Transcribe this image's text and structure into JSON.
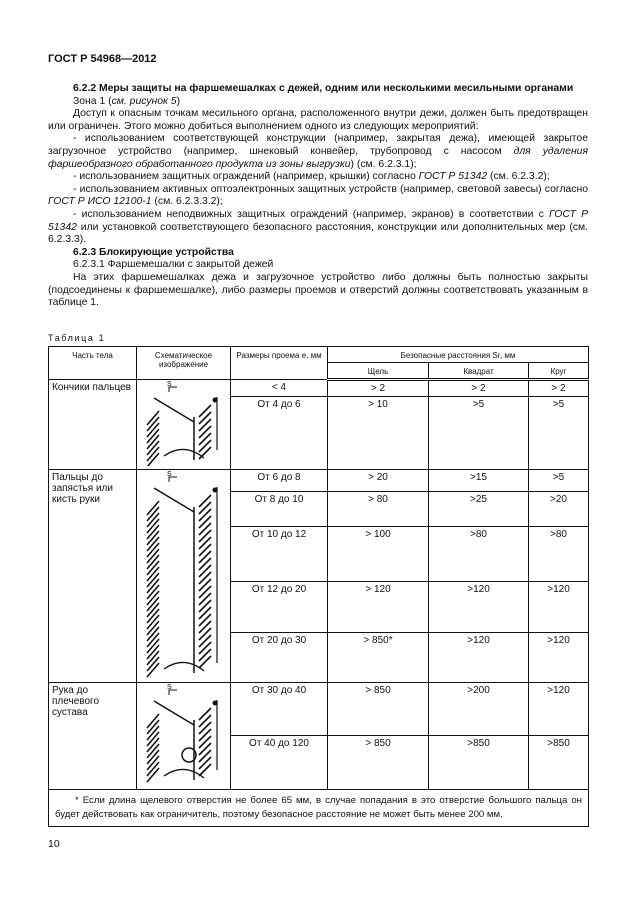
{
  "header": "ГОСТ Р 54968—2012",
  "section_622": {
    "title": "6.2.2 Меры  защиты  на фаршемешалках с дежей, одним или несколькими месильными органами",
    "zone": "Зона 1 (",
    "zone_ref": "см. рисунок 5",
    "zone_end": ")",
    "intro": "Доступ к опасным точкам месильного органа, расположенного внутри дежи, должен быть предотвращен или ограничен. Этого можно добиться выполнением одного из следующих мероприятий:",
    "item1_a": "- использованием соответствующей конструкции (например, закрытая дежа), имеющей закрытое загрузочное устройство (например, шнековый конвейер, трубопровод с насосом ",
    "item1_i": "для удаления фаршеобразного обработанного продукта из зоны выгрузки",
    "item1_b": ") (см. 6.2.3.1);",
    "item2_a": "- использованием защитных ограждений (например, крышки) согласно ",
    "item2_i": "ГОСТ Р 51342",
    "item2_b": " (см. 6.2.3.2);",
    "item3_a": "- использованием активных оптоэлектронных защитных устройств (например, световой завесы) согласно ",
    "item3_i": "ГОСТ Р ИСО 12100-1",
    "item3_b": " (см. 6.2.3.3.2);",
    "item4_a": "- использованием неподвижных защитных ограждений (например, экранов) в соответствии с ",
    "item4_i": "ГОСТ Р 51342",
    "item4_b": " или установкой соответствующего безопасного расстояния, конструкции или дополнительных мер (см. 6.2.3.3)."
  },
  "section_623": {
    "title": "6.2.3 Блокирующие устройства",
    "sub": "6.2.3.1 Фаршемешалки с закрытой дежей",
    "text": "На этих фаршемешалках дежа и загрузочное устройство либо должны быть полностью закрыты (подсоединены к фаршемешалке), либо размеры проемов и отверстий должны соответствовать указанным в таблице 1."
  },
  "table": {
    "caption": "Таблица 1",
    "headers": {
      "part": "Часть тела",
      "schema": "Схематическое изображение",
      "size": "Размеры проема e, мм",
      "safe": "Безопасные расстояния Sr, мм",
      "slot": "Щель",
      "square": "Квадрат",
      "circle": "Круг"
    },
    "groups": [
      {
        "part": "Кончики пальцев",
        "rows": [
          [
            "< 4",
            "> 2",
            "> 2",
            "> 2"
          ],
          [
            "От 4 до 6",
            "> 10",
            ">5",
            ">5"
          ]
        ]
      },
      {
        "part": "Пальцы до запястья или кисть руки",
        "rows": [
          [
            "От 6 до 8",
            "> 20",
            ">15",
            ">5"
          ],
          [
            "От 8 до 10",
            "> 80",
            ">25",
            ">20"
          ],
          [
            "От 10 до 12",
            "> 100",
            ">80",
            ">80"
          ],
          [
            "От 12 до 20",
            "> 120",
            ">120",
            ">120"
          ],
          [
            "От 20 до 30",
            "> 850*",
            ">120",
            ">120"
          ]
        ]
      },
      {
        "part": "Рука до плечевого сустава",
        "rows": [
          [
            "От 30 до 40",
            "> 850",
            ">200",
            ">120"
          ],
          [
            "От 40 до 120",
            "> 850",
            ">850",
            ">850"
          ]
        ]
      }
    ],
    "footnote": "* Если длина щелевого отверстия не более 65 мм, в случае попадания в это отверстие большого пальца он будет действовать как ограничитель, поэтому безопасное расстояние не может быть менее 200 мм."
  },
  "page_number": "10"
}
